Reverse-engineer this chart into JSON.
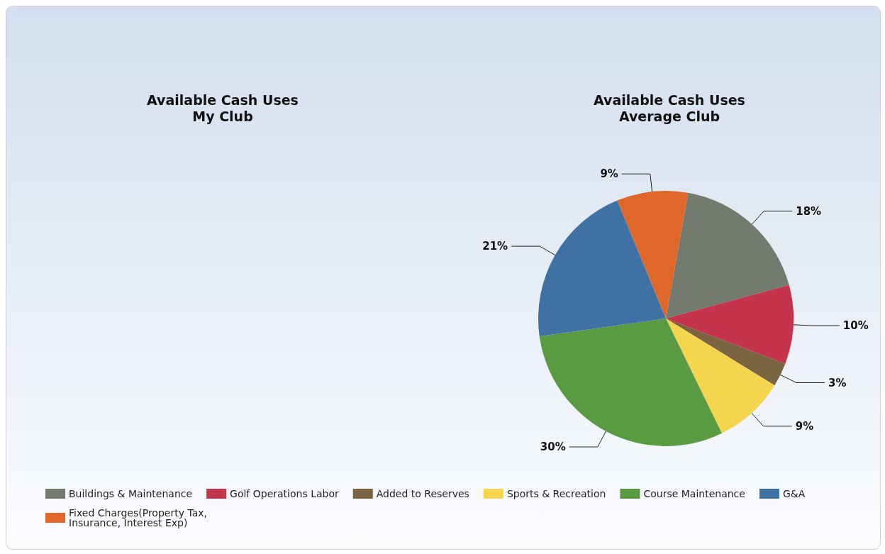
{
  "chart_data": [
    {
      "type": "other",
      "title": "Available Cash Uses\nMy Club"
    },
    {
      "type": "pie",
      "title": "Available Cash Uses\nAverage Club",
      "categories": [
        "Buildings & Maintenance",
        "Golf Operations Labor",
        "Added to Reserves",
        "Sports & Recreation",
        "Course Maintenance",
        "G&A",
        "Fixed Charges(Property Tax,\nInsurance, Interest Exp)"
      ],
      "values": [
        18,
        10,
        3,
        9,
        30,
        21,
        9
      ],
      "value_labels": [
        "18%",
        "10%",
        "3%",
        "9%",
        "30%",
        "21%",
        "9%"
      ],
      "colors": [
        "#737a6e",
        "#c4354d",
        "#7b6440",
        "#f5d44e",
        "#5a9a42",
        "#3f72a4",
        "#e0672a"
      ],
      "legend": "bottom"
    }
  ]
}
